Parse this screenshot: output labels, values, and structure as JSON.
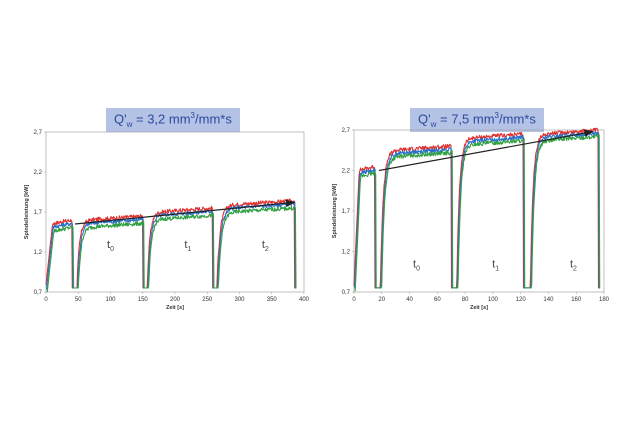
{
  "chart_data": [
    {
      "type": "line",
      "header": {
        "q": "Q'",
        "sub": "w",
        "eq": " = 3,2 mm",
        "sup": "3",
        "tail": "/mm*s"
      },
      "xlabel": "Zeit [s]",
      "ylabel": "Spindelleistung [kW]",
      "xlim": [
        0,
        400
      ],
      "ylim": [
        0.7,
        2.7
      ],
      "xticks": [
        "0",
        "50",
        "100",
        "150",
        "200",
        "250",
        "300",
        "350",
        "400"
      ],
      "yticks": [
        "0,7",
        "1,2",
        "1,7",
        "2,2",
        "2,7"
      ],
      "period_labels": [
        {
          "t": "t",
          "sub": "0",
          "x": 100,
          "y": 1.25
        },
        {
          "t": "t",
          "sub": "1",
          "x": 220,
          "y": 1.25
        },
        {
          "t": "t",
          "sub": "2",
          "x": 340,
          "y": 1.25
        }
      ],
      "trend_arrow": {
        "x1": 45,
        "y1": 1.55,
        "x2": 385,
        "y2": 1.82
      },
      "grind_segments": [
        {
          "start": 0,
          "end": 40,
          "level": 1.5,
          "rise_to": 1.35
        },
        {
          "start": 48,
          "end": 150,
          "level": 1.55
        },
        {
          "start": 157,
          "end": 258,
          "level": 1.65
        },
        {
          "start": 265,
          "end": 385,
          "level": 1.74
        }
      ],
      "series": [
        {
          "color": "#e03030",
          "offset": 0.04
        },
        {
          "color": "#2a70c8",
          "offset": 0.0
        },
        {
          "color": "#30a040",
          "offset": -0.05
        }
      ],
      "grid": false
    },
    {
      "type": "line",
      "header": {
        "q": "Q'",
        "sub": "w",
        "eq": " = 7,5 mm",
        "sup": "3",
        "tail": "/mm*s"
      },
      "xlabel": "Zeit [s]",
      "ylabel": "Spindelleistung [kW]",
      "xlim": [
        0,
        180
      ],
      "ylim": [
        0.7,
        2.7
      ],
      "xticks": [
        "0",
        "20",
        "40",
        "60",
        "80",
        "100",
        "120",
        "140",
        "160",
        "180"
      ],
      "yticks": [
        "0,7",
        "1,2",
        "1,7",
        "2,2",
        "2,7"
      ],
      "period_labels": [
        {
          "t": "t",
          "sub": "0",
          "x": 45,
          "y": 1.0
        },
        {
          "t": "t",
          "sub": "1",
          "x": 102,
          "y": 1.0
        },
        {
          "t": "t",
          "sub": "2",
          "x": 158,
          "y": 1.0
        }
      ],
      "trend_arrow": {
        "x1": 18,
        "y1": 2.2,
        "x2": 172,
        "y2": 2.68
      },
      "grind_segments": [
        {
          "start": 0,
          "end": 15,
          "level": 2.15,
          "rise_to": 1.9
        },
        {
          "start": 19,
          "end": 70,
          "level": 2.4
        },
        {
          "start": 74,
          "end": 122,
          "level": 2.55
        },
        {
          "start": 127,
          "end": 176,
          "level": 2.6
        }
      ],
      "series": [
        {
          "color": "#e03030",
          "offset": 0.04
        },
        {
          "color": "#2a70c8",
          "offset": 0.0
        },
        {
          "color": "#30a040",
          "offset": -0.04
        }
      ],
      "grid": false
    }
  ]
}
